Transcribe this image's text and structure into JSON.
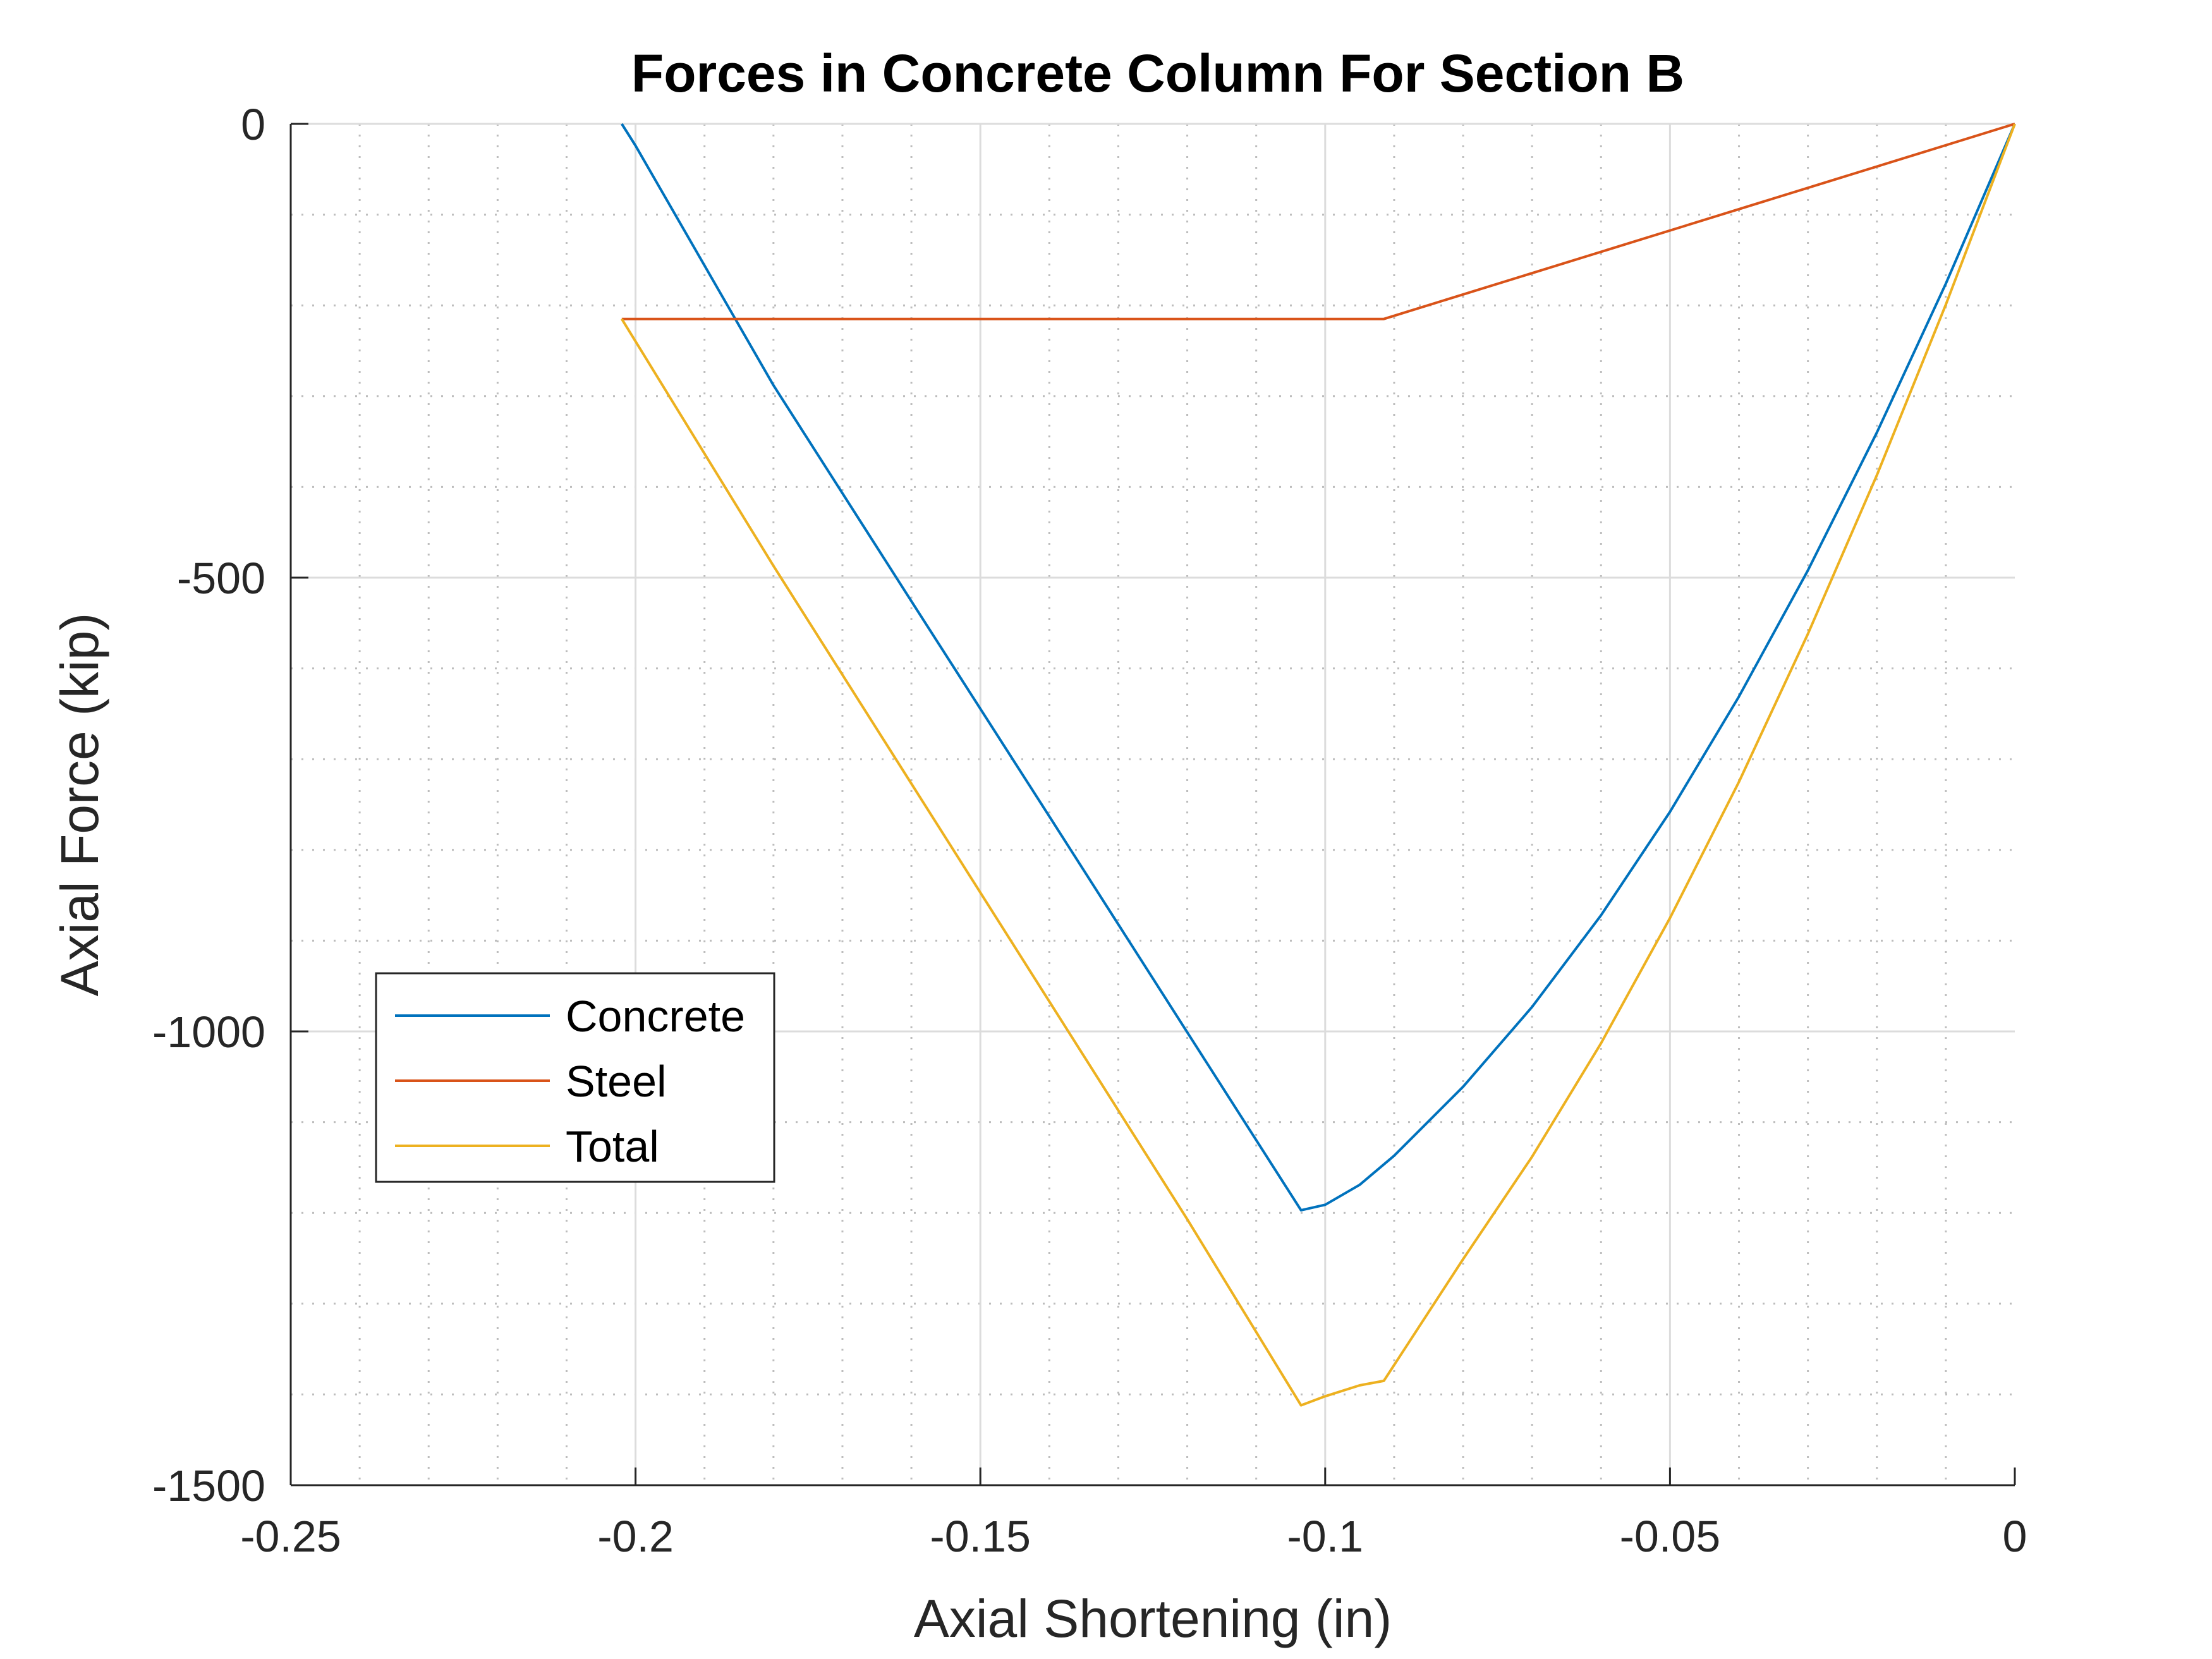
{
  "chart_data": {
    "type": "line",
    "title": "Forces in Concrete Column For Section B",
    "xlabel": "Axial Shortening (in)",
    "ylabel": "Axial Force (kip)",
    "xlim": [
      -0.25,
      0
    ],
    "ylim": [
      -1500,
      0
    ],
    "xticks": [
      -0.25,
      -0.2,
      -0.15,
      -0.1,
      -0.05,
      0
    ],
    "xtick_labels": [
      "-0.25",
      "-0.2",
      "-0.15",
      "-0.1",
      "-0.05",
      "0"
    ],
    "yticks": [
      0,
      -500,
      -1000,
      -1500
    ],
    "ytick_labels": [
      "0",
      "-500",
      "-1000",
      "-1500"
    ],
    "grid": true,
    "minor_grid": true,
    "legend_position": "lower-left",
    "series": [
      {
        "name": "Concrete",
        "color": "#0072BD",
        "x": [
          0,
          -0.01,
          -0.02,
          -0.03,
          -0.04,
          -0.05,
          -0.06,
          -0.07,
          -0.08,
          -0.09,
          -0.095,
          -0.1,
          -0.1035,
          -0.12,
          -0.14,
          -0.16,
          -0.18,
          -0.2,
          -0.202
        ],
        "y": [
          0,
          -176,
          -340,
          -492,
          -631,
          -758,
          -872,
          -973,
          -1061,
          -1137,
          -1169,
          -1191,
          -1197,
          -1001,
          -763,
          -526,
          -288,
          -24,
          0
        ]
      },
      {
        "name": "Steel",
        "color": "#D95319",
        "x": [
          0,
          -0.0915,
          -0.202
        ],
        "y": [
          0,
          -215,
          -215
        ]
      },
      {
        "name": "Total",
        "color": "#EDB120",
        "x": [
          0,
          -0.01,
          -0.02,
          -0.03,
          -0.04,
          -0.05,
          -0.06,
          -0.07,
          -0.08,
          -0.0915,
          -0.095,
          -0.1,
          -0.1035,
          -0.12,
          -0.14,
          -0.16,
          -0.18,
          -0.202
        ],
        "y": [
          0,
          -199,
          -387,
          -562,
          -725,
          -875,
          -1013,
          -1138,
          -1251,
          -1385,
          -1390,
          -1402,
          -1412,
          -1207,
          -967,
          -727,
          -487,
          -215
        ]
      }
    ]
  }
}
